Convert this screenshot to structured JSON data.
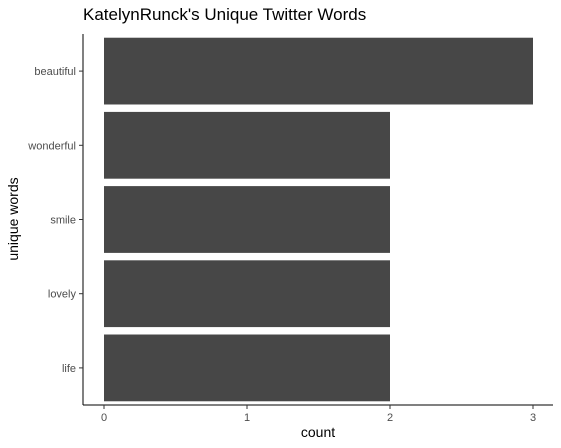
{
  "chart_data": {
    "type": "bar",
    "orientation": "horizontal",
    "title": "KatelynRunck's Unique Twitter Words",
    "xlabel": "count",
    "ylabel": "unique words",
    "categories": [
      "beautiful",
      "wonderful",
      "smile",
      "lovely",
      "life"
    ],
    "values": [
      3,
      2,
      2,
      2,
      2
    ],
    "xlim": [
      0,
      3
    ],
    "xticks": [
      "0",
      "1",
      "2",
      "3"
    ],
    "bar_color": "#474747",
    "grid": false,
    "legend": "none"
  }
}
